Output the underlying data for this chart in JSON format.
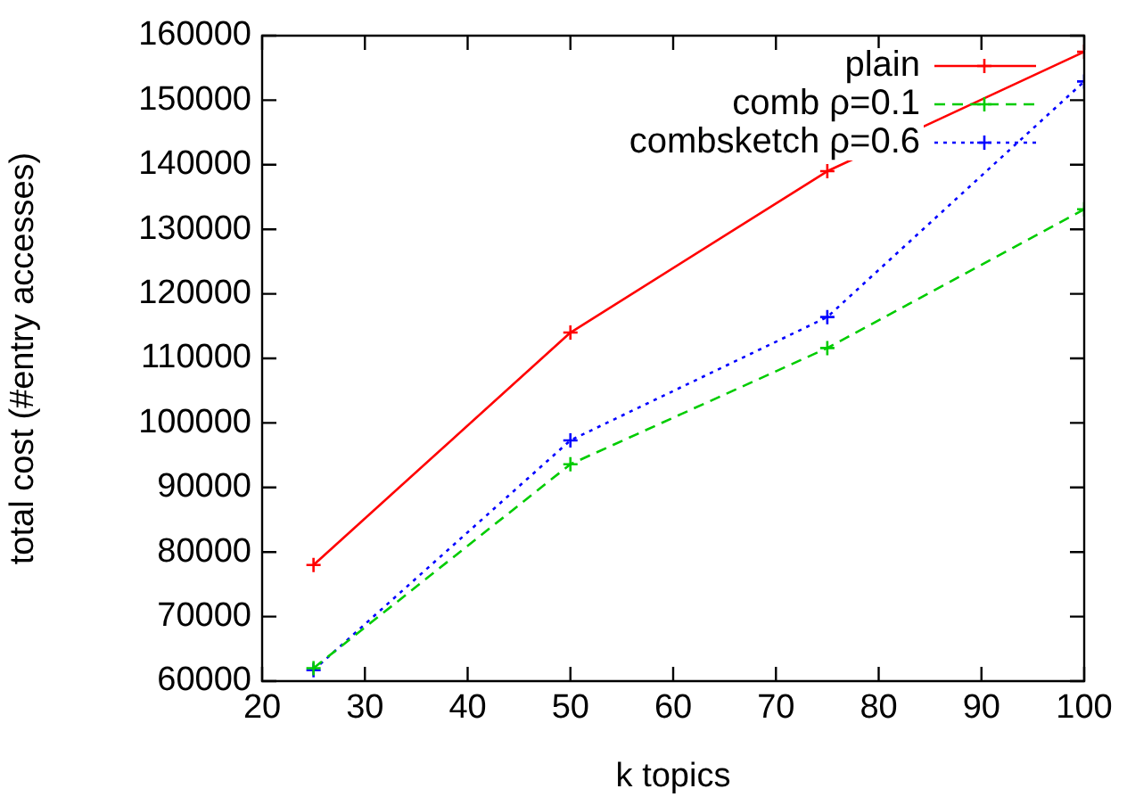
{
  "chart_data": {
    "type": "line",
    "xlabel": "k topics",
    "ylabel": "total cost (#entry accesses)",
    "x": [
      25,
      50,
      75,
      100
    ],
    "series": [
      {
        "name": "plain",
        "color": "#ff0000",
        "values": [
          78000,
          114000,
          139000,
          157500
        ],
        "marker": "cross",
        "line_style": "solid"
      },
      {
        "name": "comb ρ=0.1",
        "color": "#00cc00",
        "values": [
          62000,
          93600,
          111600,
          133100
        ],
        "marker": "cross",
        "line_style": "dashed"
      },
      {
        "name": "combsketch ρ=0.6",
        "color": "#0000ff",
        "values": [
          61700,
          97300,
          116400,
          152900
        ],
        "marker": "cross",
        "line_style": "dotted"
      }
    ],
    "xlim": [
      20,
      100
    ],
    "xticks": [
      20,
      30,
      40,
      50,
      60,
      70,
      80,
      90,
      100
    ],
    "ylim": [
      60000,
      160000
    ],
    "yticks": [
      60000,
      70000,
      80000,
      90000,
      100000,
      110000,
      120000,
      130000,
      140000,
      150000,
      160000
    ],
    "grid": false,
    "legend": "top right"
  }
}
